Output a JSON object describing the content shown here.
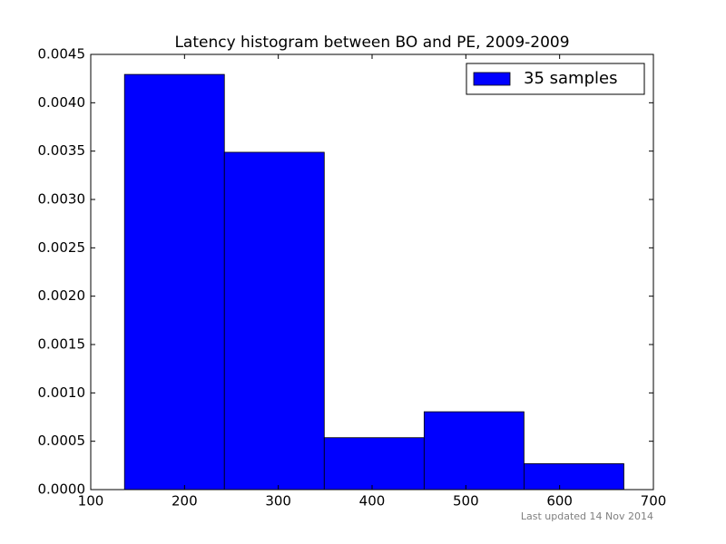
{
  "chart_data": {
    "type": "histogram",
    "title": "Latency histogram between BO and PE, 2009-2009",
    "footnote": "Last updated 14 Nov 2014",
    "series": [
      {
        "name": "35 samples",
        "color": "#0000ff",
        "values": [
          0.004293,
          0.003488,
          0.000537,
          0.000805,
          0.000268
        ]
      }
    ],
    "bins": [
      136,
      242.5,
      349,
      455.5,
      562,
      668.5
    ],
    "xlim": [
      100,
      700
    ],
    "xticks": [
      100,
      200,
      300,
      400,
      500,
      600,
      700
    ],
    "ylim": [
      0,
      0.0045
    ],
    "yticks": [
      {
        "value": 0,
        "label": "0.0000"
      },
      {
        "value": 0.0005,
        "label": "0.0005"
      },
      {
        "value": 0.001,
        "label": "0.0010"
      },
      {
        "value": 0.0015,
        "label": "0.0015"
      },
      {
        "value": 0.002,
        "label": "0.0020"
      },
      {
        "value": 0.0025,
        "label": "0.0025"
      },
      {
        "value": 0.003,
        "label": "0.0030"
      },
      {
        "value": 0.0035,
        "label": "0.0035"
      },
      {
        "value": 0.004,
        "label": "0.0040"
      },
      {
        "value": 0.0045,
        "label": "0.0045"
      }
    ],
    "legend": "upper right",
    "grid": false
  }
}
